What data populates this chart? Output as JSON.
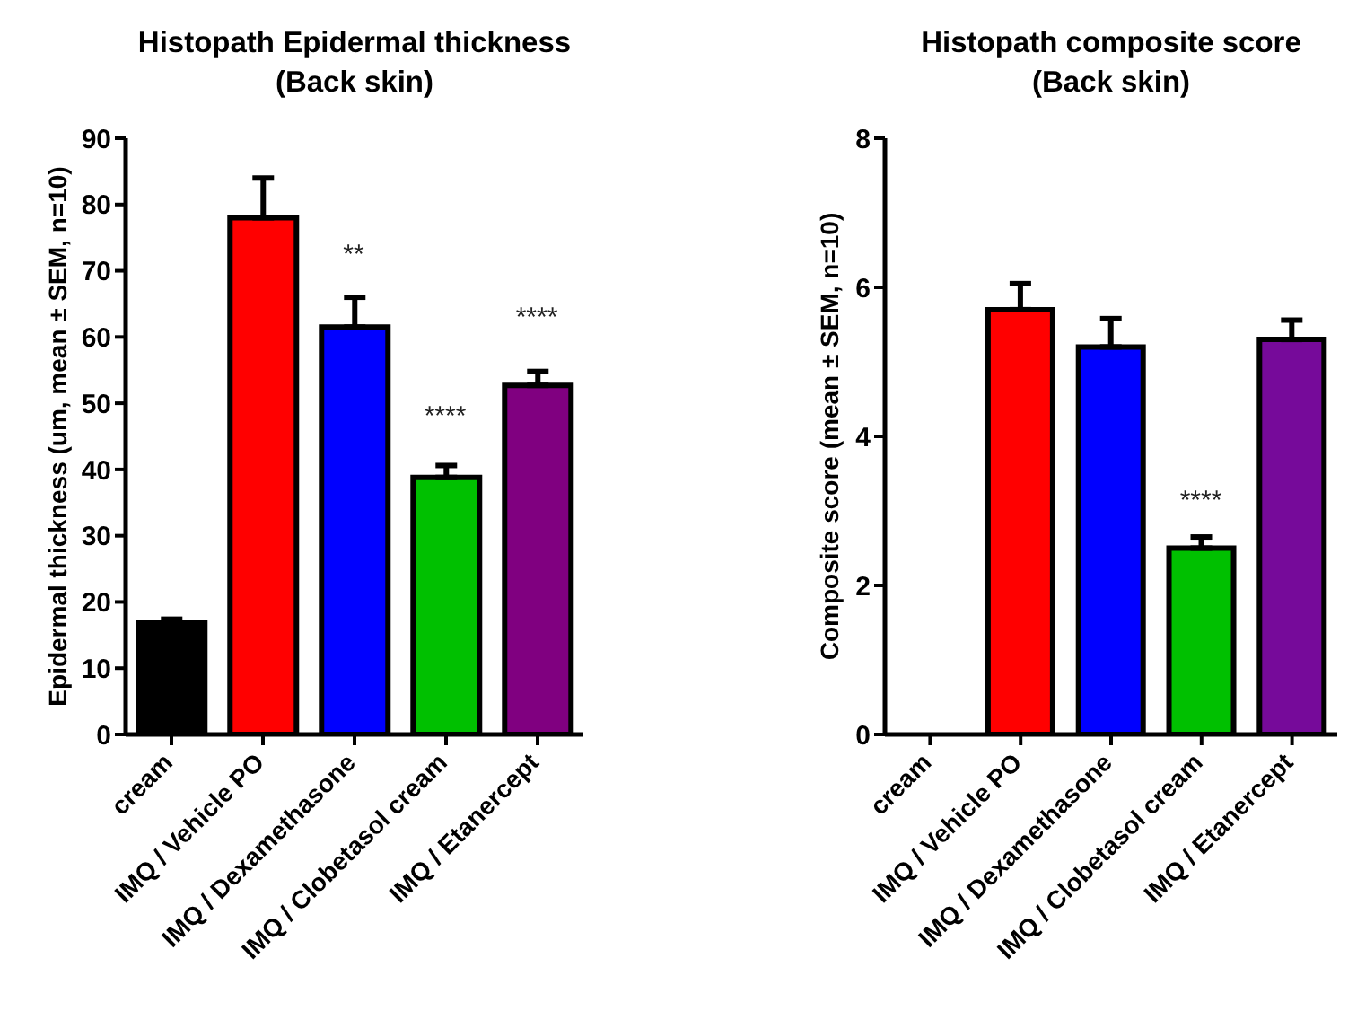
{
  "chart_data": [
    {
      "type": "bar",
      "title": "Histopath Epidermal thickness\n(Back skin)",
      "ylabel": "Epidermal thickness (um, mean ± SEM, n=10)",
      "categories": [
        "cream",
        "IMQ / Vehicle PO",
        "IMQ / Dexamethasone",
        "IMQ / Clobetasol cream",
        "IMQ / Etanercept"
      ],
      "values": [
        16.8,
        78,
        61.5,
        38.8,
        52.7
      ],
      "colors": [
        "#000000",
        "#ff0000",
        "#0000ff",
        "#00c000",
        "#800080"
      ],
      "errors": [
        [
          16.8,
          17.4
        ],
        [
          78,
          84
        ],
        [
          61.5,
          66
        ],
        [
          38.8,
          40.6
        ],
        [
          52.7,
          54.8
        ]
      ],
      "ylim": [
        0,
        90
      ],
      "yticks": [
        0,
        10,
        20,
        30,
        40,
        50,
        60,
        70,
        80,
        90
      ],
      "annotations": [
        "**",
        "****",
        "****"
      ]
    },
    {
      "type": "bar",
      "title": "Histopath composite score\n(Back skin)",
      "ylabel": "Composite score (mean ± SEM, n=10)",
      "categories": [
        "cream",
        "IMQ / Vehicle PO",
        "IMQ / Dexamethasone",
        "IMQ / Clobetasol cream",
        "IMQ / Etanercept"
      ],
      "values": [
        0,
        5.7,
        5.2,
        2.5,
        5.3
      ],
      "colors": [
        "#000000",
        "#ff0000",
        "#0000ff",
        "#00c000",
        "#760a9a"
      ],
      "errors": [
        null,
        [
          5.7,
          6.05
        ],
        [
          5.2,
          5.58
        ],
        [
          2.5,
          2.65
        ],
        [
          5.3,
          5.56
        ]
      ],
      "ylim": [
        0,
        8
      ],
      "yticks": [
        0,
        2,
        4,
        6,
        8
      ],
      "annotations": [
        "****"
      ]
    }
  ]
}
